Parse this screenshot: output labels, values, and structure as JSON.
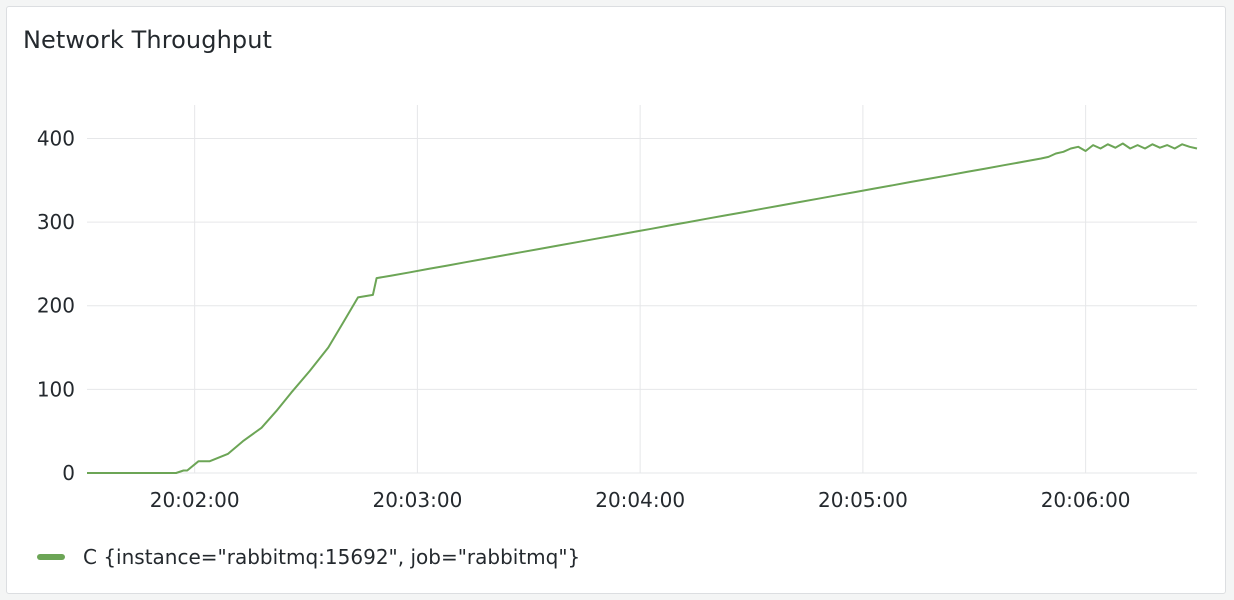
{
  "panel": {
    "title": "Network Throughput"
  },
  "legend": {
    "label": "C {instance=\"rabbitmq:15692\", job=\"rabbitmq\"}",
    "color": "#6ca556"
  },
  "colors": {
    "series": "#6ca556",
    "grid": "#e6e7e9",
    "text": "#24292e"
  },
  "chart_data": {
    "type": "line",
    "title": "Network Throughput",
    "xlabel": "",
    "ylabel": "",
    "x_ticks": [
      "20:02:00",
      "20:03:00",
      "20:04:00",
      "20:05:00",
      "20:06:00"
    ],
    "y_ticks": [
      0,
      100,
      200,
      300,
      400
    ],
    "ylim": [
      0,
      440
    ],
    "xlim": [
      "20:01:31",
      "20:06:30"
    ],
    "grid": true,
    "legend_position": "bottom-left",
    "series": [
      {
        "name": "C {instance=\"rabbitmq:15692\", job=\"rabbitmq\"}",
        "color": "#6ca556",
        "x": [
          "20:01:31",
          "20:01:45",
          "20:01:55",
          "20:01:57",
          "20:01:58",
          "20:02:01",
          "20:02:04",
          "20:02:09",
          "20:02:09",
          "20:02:13",
          "20:02:13",
          "20:02:18",
          "20:02:18",
          "20:02:22",
          "20:02:22",
          "20:02:26",
          "20:02:26",
          "20:02:31",
          "20:02:31",
          "20:02:36",
          "20:02:36",
          "20:02:40",
          "20:02:40",
          "20:02:44",
          "20:02:44",
          "20:02:48",
          "20:02:48",
          "20:02:49",
          "20:02:53",
          "20:02:58",
          "20:03:03",
          "20:03:08",
          "20:03:13",
          "20:03:18",
          "20:03:23",
          "20:03:28",
          "20:03:33",
          "20:03:38",
          "20:03:43",
          "20:03:48",
          "20:03:53",
          "20:03:58",
          "20:04:03",
          "20:04:08",
          "20:04:13",
          "20:04:18",
          "20:04:23",
          "20:04:28",
          "20:04:33",
          "20:04:38",
          "20:04:43",
          "20:04:48",
          "20:04:53",
          "20:04:58",
          "20:05:03",
          "20:05:08",
          "20:05:13",
          "20:05:18",
          "20:05:23",
          "20:05:28",
          "20:05:33",
          "20:05:38",
          "20:05:43",
          "20:05:48",
          "20:05:50",
          "20:05:52",
          "20:05:54",
          "20:05:56",
          "20:05:58",
          "20:06:00",
          "20:06:02",
          "20:06:04",
          "20:06:06",
          "20:06:08",
          "20:06:10",
          "20:06:12",
          "20:06:14",
          "20:06:16",
          "20:06:18",
          "20:06:20",
          "20:06:22",
          "20:06:24",
          "20:06:26",
          "20:06:28",
          "20:06:30"
        ],
        "y": [
          0,
          0,
          0,
          3,
          3,
          14,
          14,
          23,
          23,
          38,
          38,
          54,
          54,
          74,
          74,
          96,
          96,
          122,
          122,
          150,
          150,
          180,
          180,
          210,
          210,
          213,
          213,
          233,
          236,
          240,
          244,
          248,
          252,
          256,
          260,
          264,
          268,
          272,
          276,
          280,
          284,
          288,
          292,
          296,
          300,
          304,
          308,
          312,
          316,
          320,
          324,
          328,
          332,
          336,
          340,
          344,
          348,
          352,
          356,
          360,
          364,
          368,
          372,
          376,
          378,
          382,
          384,
          388,
          390,
          385,
          392,
          388,
          393,
          389,
          394,
          388,
          392,
          388,
          393,
          389,
          392,
          388,
          393,
          390,
          388
        ]
      }
    ]
  }
}
